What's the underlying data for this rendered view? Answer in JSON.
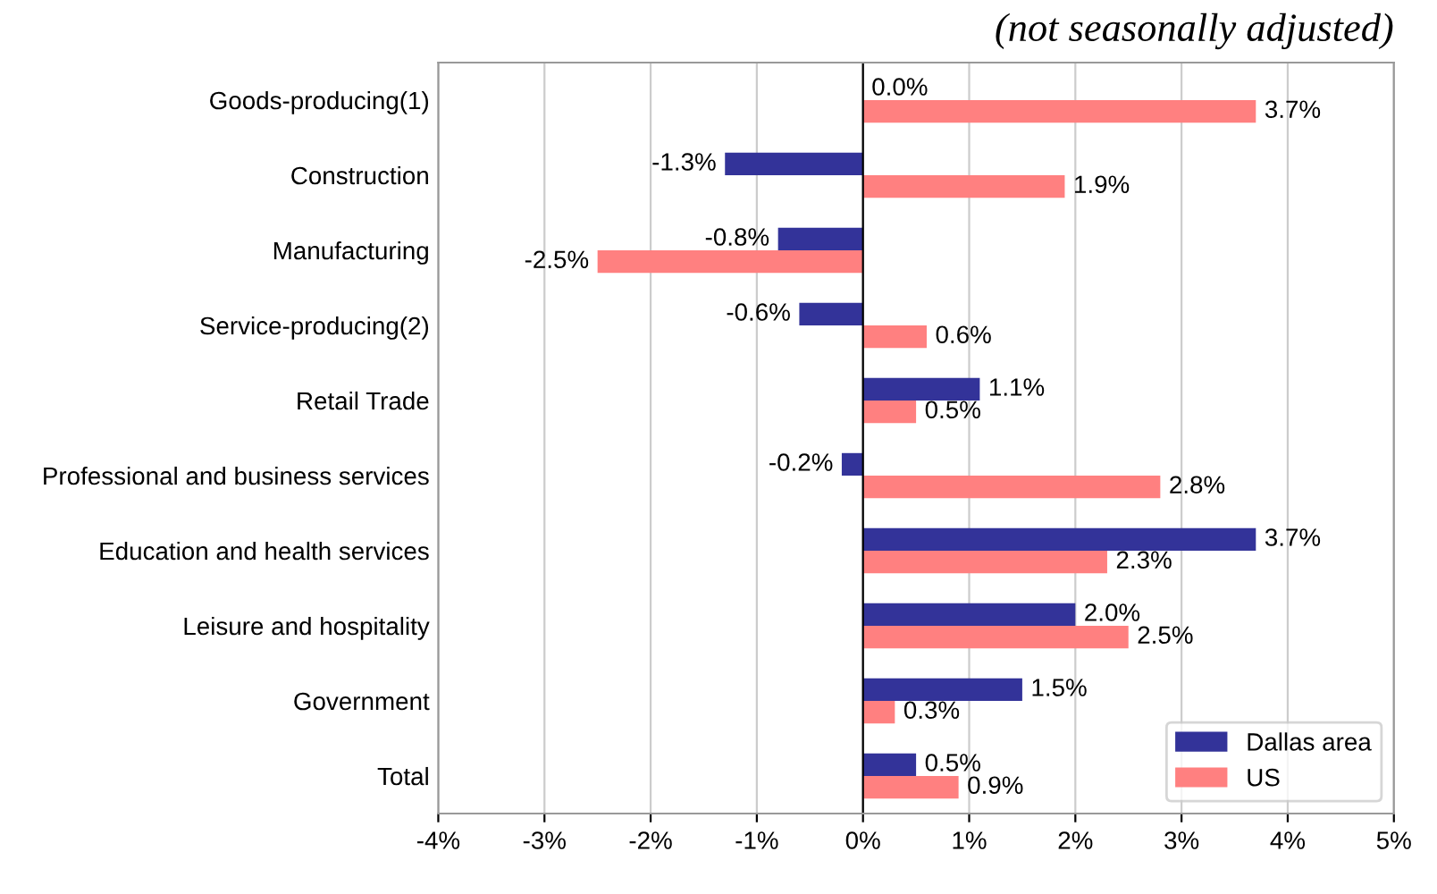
{
  "chart_data": {
    "type": "bar",
    "orientation": "horizontal",
    "subtitle": "(not seasonally adjusted)",
    "categories": [
      "Goods-producing(1)",
      "Construction",
      "Manufacturing",
      "Service-producing(2)",
      "Retail Trade",
      "Professional and business services",
      "Education and health services",
      "Leisure and hospitality",
      "Government",
      "Total"
    ],
    "series": [
      {
        "name": "Dallas area",
        "color": "#333399",
        "values": [
          0.0,
          -1.3,
          -0.8,
          -0.6,
          1.1,
          -0.2,
          3.7,
          2.0,
          1.5,
          0.5
        ],
        "value_labels": [
          "0.0%",
          "-1.3%",
          "-0.8%",
          "-0.6%",
          "1.1%",
          "-0.2%",
          "3.7%",
          "2.0%",
          "1.5%",
          "0.5%"
        ]
      },
      {
        "name": "US",
        "color": "#ff8080",
        "values": [
          3.7,
          1.9,
          -2.5,
          0.6,
          0.5,
          2.8,
          2.3,
          2.5,
          0.3,
          0.9
        ],
        "value_labels": [
          "3.7%",
          "1.9%",
          "-2.5%",
          "0.6%",
          "0.5%",
          "2.8%",
          "2.3%",
          "2.5%",
          "0.3%",
          "0.9%"
        ]
      }
    ],
    "xlim": [
      -4,
      5
    ],
    "xticks": [
      {
        "value": -4,
        "label": "-4%"
      },
      {
        "value": -3,
        "label": "-3%"
      },
      {
        "value": -2,
        "label": "-2%"
      },
      {
        "value": -1,
        "label": "-1%"
      },
      {
        "value": 0,
        "label": "0%"
      },
      {
        "value": 1,
        "label": "1%"
      },
      {
        "value": 2,
        "label": "2%"
      },
      {
        "value": 3,
        "label": "3%"
      },
      {
        "value": 4,
        "label": "4%"
      },
      {
        "value": 5,
        "label": "5%"
      }
    ],
    "grid": "x",
    "legend": "bottom right"
  }
}
